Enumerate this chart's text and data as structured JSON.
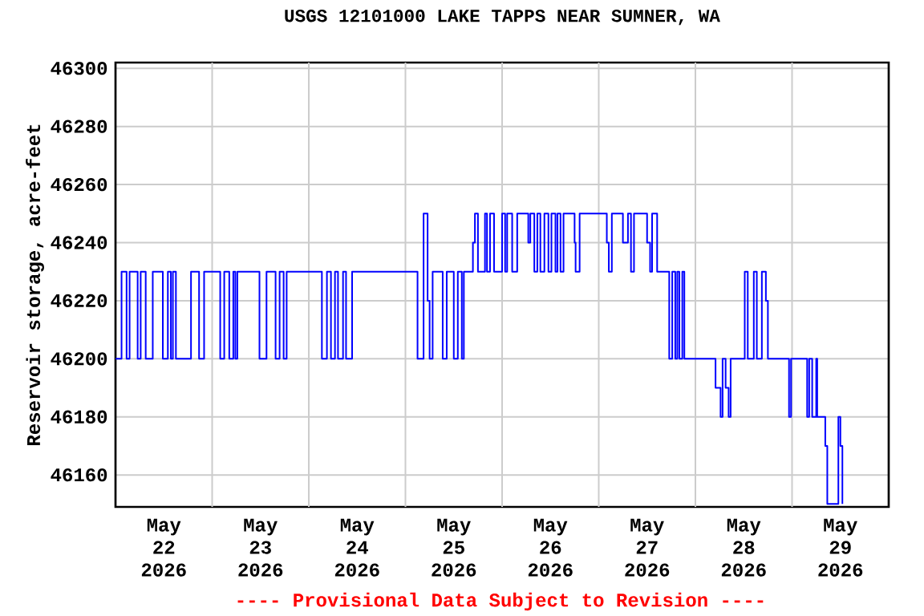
{
  "chart_data": {
    "type": "step",
    "title": "USGS 12101000 LAKE TAPPS NEAR SUMNER, WA",
    "ylabel": "Reservoir storage, acre-feet",
    "annotations": [
      "---- Provisional Data Subject to Revision ----"
    ],
    "color": "#0000ff",
    "grid": true,
    "xlim": [
      "2026-05-22T00:00",
      "2026-05-30T00:00"
    ],
    "ylim": [
      46149,
      46302
    ],
    "yticks": [
      46160,
      46180,
      46200,
      46220,
      46240,
      46260,
      46280,
      46300
    ],
    "xticks": [
      {
        "value": "2026-05-22T12:00",
        "label": "May 22 2026"
      },
      {
        "value": "2026-05-23T12:00",
        "label": "May 23 2026"
      },
      {
        "value": "2026-05-24T12:00",
        "label": "May 24 2026"
      },
      {
        "value": "2026-05-25T12:00",
        "label": "May 25 2026"
      },
      {
        "value": "2026-05-26T12:00",
        "label": "May 26 2026"
      },
      {
        "value": "2026-05-27T12:00",
        "label": "May 27 2026"
      },
      {
        "value": "2026-05-28T12:00",
        "label": "May 28 2026"
      },
      {
        "value": "2026-05-29T12:00",
        "label": "May 29 2026"
      },
      {
        "value": "2026-05-23T00:00",
        "label": null
      },
      {
        "value": "2026-05-24T00:00",
        "label": null
      },
      {
        "value": "2026-05-25T00:00",
        "label": null
      },
      {
        "value": "2026-05-26T00:00",
        "label": null
      },
      {
        "value": "2026-05-27T00:00",
        "label": null
      },
      {
        "value": "2026-05-28T00:00",
        "label": null
      },
      {
        "value": "2026-05-29T00:00",
        "label": null
      }
    ],
    "x": [
      "2026-05-22T00:00",
      "2026-05-22T01:30",
      "2026-05-22T02:45",
      "2026-05-22T03:30",
      "2026-05-22T05:30",
      "2026-05-22T06:15",
      "2026-05-22T07:30",
      "2026-05-22T09:15",
      "2026-05-22T11:45",
      "2026-05-22T13:00",
      "2026-05-22T13:45",
      "2026-05-22T14:15",
      "2026-05-22T15:00",
      "2026-05-22T18:45",
      "2026-05-22T20:45",
      "2026-05-22T22:00",
      "2026-05-23T02:00",
      "2026-05-23T03:00",
      "2026-05-23T04:15",
      "2026-05-23T05:15",
      "2026-05-23T05:45",
      "2026-05-23T06:15",
      "2026-05-23T11:45",
      "2026-05-23T13:30",
      "2026-05-23T15:45",
      "2026-05-23T16:45",
      "2026-05-23T17:45",
      "2026-05-23T18:30",
      "2026-05-24T03:15",
      "2026-05-24T04:30",
      "2026-05-24T05:30",
      "2026-05-24T06:30",
      "2026-05-24T07:15",
      "2026-05-24T08:30",
      "2026-05-24T09:15",
      "2026-05-24T10:45",
      "2026-05-25T03:00",
      "2026-05-25T04:30",
      "2026-05-25T05:30",
      "2026-05-25T06:00",
      "2026-05-25T06:45",
      "2026-05-25T09:15",
      "2026-05-25T10:15",
      "2026-05-25T12:00",
      "2026-05-25T13:00",
      "2026-05-25T14:00",
      "2026-05-25T14:30",
      "2026-05-25T16:45",
      "2026-05-25T17:15",
      "2026-05-25T18:00",
      "2026-05-25T19:45",
      "2026-05-25T20:15",
      "2026-05-25T21:00",
      "2026-05-25T22:00",
      "2026-05-26T00:00",
      "2026-05-26T00:45",
      "2026-05-26T01:15",
      "2026-05-26T02:30",
      "2026-05-26T03:45",
      "2026-05-26T06:30",
      "2026-05-26T07:00",
      "2026-05-26T08:00",
      "2026-05-26T08:45",
      "2026-05-26T09:30",
      "2026-05-26T10:30",
      "2026-05-26T11:30",
      "2026-05-26T12:15",
      "2026-05-26T13:15",
      "2026-05-26T13:45",
      "2026-05-26T14:30",
      "2026-05-26T15:15",
      "2026-05-26T18:00",
      "2026-05-26T18:15",
      "2026-05-26T19:15",
      "2026-05-27T02:00",
      "2026-05-27T02:30",
      "2026-05-27T03:15",
      "2026-05-27T06:00",
      "2026-05-27T07:15",
      "2026-05-27T08:00",
      "2026-05-27T08:45",
      "2026-05-27T12:00",
      "2026-05-27T12:45",
      "2026-05-27T13:15",
      "2026-05-27T14:30",
      "2026-05-27T17:30",
      "2026-05-27T18:15",
      "2026-05-27T19:00",
      "2026-05-27T19:30",
      "2026-05-27T20:00",
      "2026-05-27T20:45",
      "2026-05-27T21:15",
      "2026-05-28T05:00",
      "2026-05-28T06:15",
      "2026-05-28T06:45",
      "2026-05-28T07:30",
      "2026-05-28T08:15",
      "2026-05-28T08:45",
      "2026-05-28T12:15",
      "2026-05-28T13:00",
      "2026-05-28T14:30",
      "2026-05-28T15:15",
      "2026-05-28T16:30",
      "2026-05-28T17:30",
      "2026-05-28T18:00",
      "2026-05-28T23:15",
      "2026-05-28T23:45",
      "2026-05-29T03:45",
      "2026-05-29T04:15",
      "2026-05-29T05:00",
      "2026-05-29T06:00",
      "2026-05-29T06:15",
      "2026-05-29T08:15",
      "2026-05-29T08:45",
      "2026-05-29T11:30",
      "2026-05-29T12:00",
      "2026-05-29T12:30"
    ],
    "values": [
      46200,
      46230,
      46200,
      46230,
      46200,
      46230,
      46200,
      46230,
      46200,
      46230,
      46200,
      46230,
      46200,
      46230,
      46200,
      46230,
      46200,
      46230,
      46200,
      46230,
      46200,
      46230,
      46200,
      46230,
      46200,
      46230,
      46200,
      46230,
      46200,
      46230,
      46200,
      46230,
      46200,
      46230,
      46200,
      46230,
      46200,
      46250,
      46220,
      46200,
      46230,
      46200,
      46230,
      46200,
      46230,
      46200,
      46230,
      46240,
      46250,
      46230,
      46250,
      46230,
      46250,
      46230,
      46250,
      46230,
      46250,
      46230,
      46250,
      46240,
      46250,
      46230,
      46250,
      46230,
      46250,
      46230,
      46250,
      46230,
      46250,
      46230,
      46250,
      46240,
      46230,
      46250,
      46240,
      46230,
      46250,
      46240,
      46250,
      46230,
      46250,
      46240,
      46230,
      46250,
      46230,
      46200,
      46230,
      46200,
      46230,
      46200,
      46230,
      46200,
      46190,
      46180,
      46200,
      46190,
      46180,
      46200,
      46230,
      46200,
      46230,
      46200,
      46230,
      46220,
      46200,
      46180,
      46200,
      46180,
      46200,
      46180,
      46200,
      46180,
      46170,
      46150,
      46180,
      46170,
      46150
    ]
  }
}
